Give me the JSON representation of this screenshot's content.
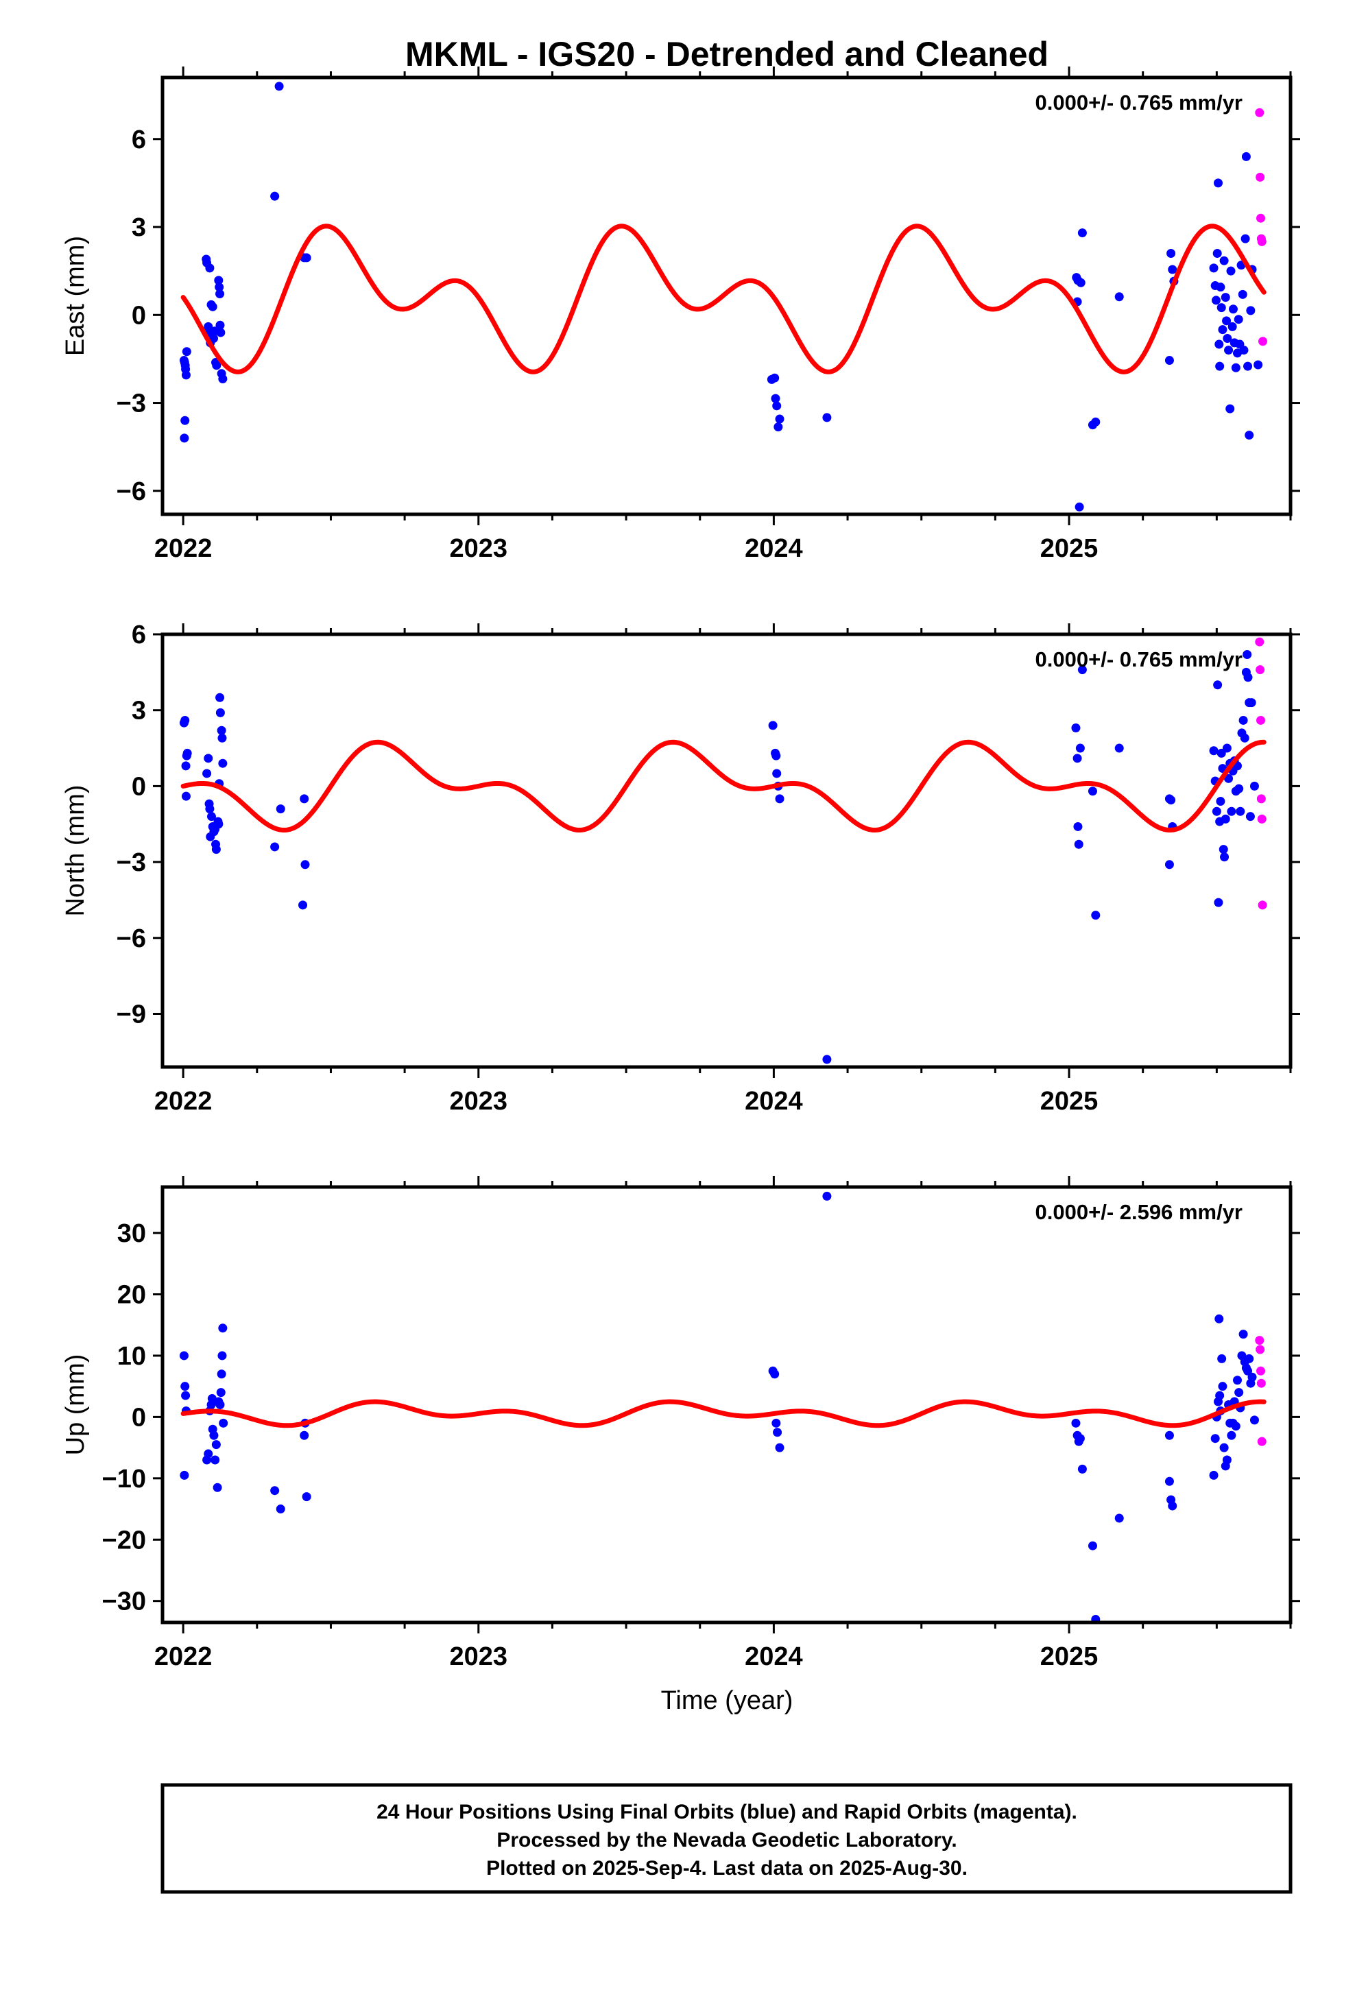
{
  "chart_data": {
    "type": "scatter",
    "title": "MKML - IGS20 - Detrended and Cleaned",
    "xlabel": "Time (year)",
    "x_ticks": [
      "2022",
      "2023",
      "2024",
      "2025"
    ],
    "xlim": [
      2021.93,
      2025.75
    ],
    "colors": {
      "final": "#0000ff",
      "rapid": "#ff00ff",
      "model": "#ff0000"
    },
    "panels": [
      {
        "name": "east",
        "ylabel": "East (mm)",
        "rate": "0.000+/- 0.765 mm/yr",
        "ylim": [
          -6.8,
          8.1
        ],
        "y_ticks": [
          -6,
          -3,
          0,
          3,
          6
        ],
        "model": {
          "offset": 0.6,
          "annual": [
            -1.2,
            -0.8
          ],
          "semiannual": [
            1.2,
            -0.7
          ]
        },
        "final": [
          [
            2022.003,
            -1.55
          ],
          [
            2022.005,
            -1.62
          ],
          [
            2022.007,
            -1.72
          ],
          [
            2022.008,
            -1.85
          ],
          [
            2022.006,
            -3.6
          ],
          [
            2022.004,
            -4.2
          ],
          [
            2022.01,
            -2.05
          ],
          [
            2022.012,
            -1.25
          ],
          [
            2022.078,
            1.9
          ],
          [
            2022.08,
            1.78
          ],
          [
            2022.09,
            1.6
          ],
          [
            2022.085,
            -0.4
          ],
          [
            2022.088,
            -0.6
          ],
          [
            2022.092,
            -0.95
          ],
          [
            2022.095,
            0.35
          ],
          [
            2022.1,
            0.28
          ],
          [
            2022.103,
            -0.8
          ],
          [
            2022.107,
            -0.55
          ],
          [
            2022.11,
            -1.62
          ],
          [
            2022.113,
            -1.72
          ],
          [
            2022.12,
            1.18
          ],
          [
            2022.122,
            0.95
          ],
          [
            2022.124,
            0.72
          ],
          [
            2022.125,
            -0.35
          ],
          [
            2022.127,
            -0.6
          ],
          [
            2022.13,
            -2.0
          ],
          [
            2022.134,
            -2.18
          ],
          [
            2022.31,
            4.05
          ],
          [
            2022.325,
            7.8
          ],
          [
            2022.41,
            1.95
          ],
          [
            2022.418,
            1.95
          ],
          [
            2023.993,
            -2.2
          ],
          [
            2024.003,
            -2.15
          ],
          [
            2024.006,
            -2.85
          ],
          [
            2024.01,
            -3.1
          ],
          [
            2024.015,
            -3.82
          ],
          [
            2024.02,
            -3.55
          ],
          [
            2024.18,
            -3.5
          ],
          [
            2025.025,
            1.28
          ],
          [
            2025.03,
            1.18
          ],
          [
            2025.04,
            1.1
          ],
          [
            2025.028,
            0.45
          ],
          [
            2025.035,
            -6.55
          ],
          [
            2025.045,
            2.8
          ],
          [
            2025.08,
            -3.75
          ],
          [
            2025.09,
            -3.65
          ],
          [
            2025.17,
            0.62
          ],
          [
            2025.34,
            -1.55
          ],
          [
            2025.345,
            2.1
          ],
          [
            2025.35,
            1.55
          ],
          [
            2025.355,
            1.15
          ],
          [
            2025.49,
            1.6
          ],
          [
            2025.495,
            1.0
          ],
          [
            2025.498,
            0.5
          ],
          [
            2025.502,
            2.1
          ],
          [
            2025.505,
            4.5
          ],
          [
            2025.508,
            -1.0
          ],
          [
            2025.51,
            -1.75
          ],
          [
            2025.513,
            0.95
          ],
          [
            2025.516,
            0.25
          ],
          [
            2025.52,
            -0.5
          ],
          [
            2025.525,
            1.85
          ],
          [
            2025.53,
            0.6
          ],
          [
            2025.533,
            -0.2
          ],
          [
            2025.536,
            -0.8
          ],
          [
            2025.54,
            -1.2
          ],
          [
            2025.545,
            -3.2
          ],
          [
            2025.548,
            1.5
          ],
          [
            2025.553,
            -0.4
          ],
          [
            2025.556,
            0.2
          ],
          [
            2025.56,
            -0.95
          ],
          [
            2025.565,
            -1.8
          ],
          [
            2025.57,
            -1.3
          ],
          [
            2025.574,
            -0.15
          ],
          [
            2025.578,
            -1.0
          ],
          [
            2025.583,
            1.7
          ],
          [
            2025.588,
            0.7
          ],
          [
            2025.592,
            -1.2
          ],
          [
            2025.597,
            2.6
          ],
          [
            2025.6,
            5.4
          ],
          [
            2025.605,
            -1.75
          ],
          [
            2025.61,
            -4.1
          ],
          [
            2025.615,
            0.15
          ],
          [
            2025.62,
            1.55
          ],
          [
            2025.64,
            -1.7
          ]
        ],
        "rapid": [
          [
            2025.645,
            6.9
          ],
          [
            2025.647,
            4.7
          ],
          [
            2025.649,
            3.3
          ],
          [
            2025.651,
            2.6
          ],
          [
            2025.653,
            2.5
          ],
          [
            2025.656,
            -0.9
          ]
        ]
      },
      {
        "name": "north",
        "ylabel": "North (mm)",
        "rate": "0.000+/- 0.765 mm/yr",
        "ylim": [
          -11.1,
          6.0
        ],
        "y_ticks": [
          -9,
          -6,
          -3,
          0,
          3,
          6
        ],
        "model": {
          "offset": 0.0,
          "annual": [
            0.0,
            -1.2
          ],
          "semiannual": [
            0.0,
            0.8
          ]
        },
        "final": [
          [
            2022.003,
            2.5
          ],
          [
            2022.006,
            2.6
          ],
          [
            2022.009,
            0.8
          ],
          [
            2022.012,
            1.2
          ],
          [
            2022.014,
            1.3
          ],
          [
            2022.01,
            -0.4
          ],
          [
            2022.08,
            0.5
          ],
          [
            2022.085,
            1.1
          ],
          [
            2022.088,
            -0.7
          ],
          [
            2022.09,
            -0.9
          ],
          [
            2022.092,
            -2.0
          ],
          [
            2022.096,
            -1.2
          ],
          [
            2022.1,
            -1.6
          ],
          [
            2022.104,
            -1.8
          ],
          [
            2022.108,
            -1.7
          ],
          [
            2022.11,
            -2.3
          ],
          [
            2022.112,
            -2.5
          ],
          [
            2022.118,
            -1.4
          ],
          [
            2022.12,
            -1.5
          ],
          [
            2022.122,
            0.1
          ],
          [
            2022.124,
            3.5
          ],
          [
            2022.126,
            2.9
          ],
          [
            2022.13,
            2.2
          ],
          [
            2022.132,
            1.9
          ],
          [
            2022.134,
            0.9
          ],
          [
            2022.31,
            -2.4
          ],
          [
            2022.33,
            -0.9
          ],
          [
            2022.41,
            -0.5
          ],
          [
            2022.413,
            -3.1
          ],
          [
            2022.405,
            -4.7
          ],
          [
            2023.997,
            2.4
          ],
          [
            2024.005,
            1.3
          ],
          [
            2024.008,
            1.2
          ],
          [
            2024.01,
            0.5
          ],
          [
            2024.015,
            0.0
          ],
          [
            2024.02,
            -0.5
          ],
          [
            2024.18,
            -10.8
          ],
          [
            2025.023,
            2.3
          ],
          [
            2025.028,
            1.1
          ],
          [
            2025.03,
            -1.6
          ],
          [
            2025.033,
            -2.3
          ],
          [
            2025.038,
            1.5
          ],
          [
            2025.045,
            4.6
          ],
          [
            2025.08,
            -0.2
          ],
          [
            2025.09,
            -5.1
          ],
          [
            2025.17,
            1.5
          ],
          [
            2025.34,
            -0.5
          ],
          [
            2025.345,
            -0.55
          ],
          [
            2025.35,
            -1.6
          ],
          [
            2025.34,
            -3.1
          ],
          [
            2025.49,
            1.4
          ],
          [
            2025.495,
            0.2
          ],
          [
            2025.5,
            -1.0
          ],
          [
            2025.503,
            4.0
          ],
          [
            2025.506,
            -4.6
          ],
          [
            2025.51,
            -1.4
          ],
          [
            2025.513,
            -0.6
          ],
          [
            2025.516,
            1.3
          ],
          [
            2025.52,
            0.7
          ],
          [
            2025.523,
            -2.5
          ],
          [
            2025.526,
            -2.8
          ],
          [
            2025.53,
            -1.3
          ],
          [
            2025.535,
            1.5
          ],
          [
            2025.54,
            0.3
          ],
          [
            2025.545,
            0.9
          ],
          [
            2025.55,
            -1.0
          ],
          [
            2025.555,
            0.6
          ],
          [
            2025.56,
            1.0
          ],
          [
            2025.565,
            -0.2
          ],
          [
            2025.57,
            0.8
          ],
          [
            2025.575,
            -0.1
          ],
          [
            2025.58,
            -1.0
          ],
          [
            2025.585,
            2.1
          ],
          [
            2025.59,
            2.6
          ],
          [
            2025.595,
            1.9
          ],
          [
            2025.6,
            4.5
          ],
          [
            2025.603,
            5.2
          ],
          [
            2025.606,
            4.3
          ],
          [
            2025.61,
            3.3
          ],
          [
            2025.614,
            -1.2
          ],
          [
            2025.618,
            3.3
          ],
          [
            2025.628,
            0.0
          ]
        ],
        "rapid": [
          [
            2025.645,
            5.7
          ],
          [
            2025.647,
            4.6
          ],
          [
            2025.649,
            2.6
          ],
          [
            2025.651,
            -0.5
          ],
          [
            2025.653,
            -1.3
          ],
          [
            2025.655,
            -4.7
          ]
        ]
      },
      {
        "name": "up",
        "ylabel": "Up (mm)",
        "rate": "0.000+/- 2.596 mm/yr",
        "ylim": [
          -33.5,
          37.5
        ],
        "y_ticks": [
          -30,
          -20,
          -10,
          0,
          10,
          20,
          30
        ],
        "model": {
          "offset": 0.55,
          "annual": [
            0.0,
            -1.1
          ],
          "semiannual": [
            0.0,
            1.1
          ]
        },
        "final": [
          [
            2022.003,
            10.0
          ],
          [
            2022.006,
            5.0
          ],
          [
            2022.008,
            3.5
          ],
          [
            2022.01,
            1.0
          ],
          [
            2022.004,
            -9.5
          ],
          [
            2022.08,
            -7.0
          ],
          [
            2022.085,
            -6.0
          ],
          [
            2022.09,
            1.0
          ],
          [
            2022.095,
            2.0
          ],
          [
            2022.098,
            3.0
          ],
          [
            2022.1,
            -2.0
          ],
          [
            2022.104,
            -3.0
          ],
          [
            2022.108,
            -7.0
          ],
          [
            2022.112,
            -4.5
          ],
          [
            2022.116,
            -11.5
          ],
          [
            2022.12,
            2.5
          ],
          [
            2022.125,
            2.0
          ],
          [
            2022.128,
            4.0
          ],
          [
            2022.13,
            7.0
          ],
          [
            2022.132,
            10.0
          ],
          [
            2022.134,
            14.5
          ],
          [
            2022.136,
            -1.0
          ],
          [
            2022.31,
            -12.0
          ],
          [
            2022.33,
            -15.0
          ],
          [
            2022.41,
            -3.0
          ],
          [
            2022.413,
            -1.0
          ],
          [
            2022.418,
            -13.0
          ],
          [
            2023.997,
            7.5
          ],
          [
            2024.003,
            7.0
          ],
          [
            2024.008,
            -1.0
          ],
          [
            2024.012,
            -2.5
          ],
          [
            2024.02,
            -5.0
          ],
          [
            2024.18,
            36.0
          ],
          [
            2025.023,
            -1.0
          ],
          [
            2025.028,
            -3.0
          ],
          [
            2025.033,
            -4.0
          ],
          [
            2025.038,
            -3.5
          ],
          [
            2025.045,
            -8.5
          ],
          [
            2025.08,
            -21.0
          ],
          [
            2025.09,
            -33.0
          ],
          [
            2025.17,
            -16.5
          ],
          [
            2025.34,
            -10.5
          ],
          [
            2025.345,
            -13.5
          ],
          [
            2025.35,
            -14.5
          ],
          [
            2025.34,
            -3.0
          ],
          [
            2025.49,
            -9.5
          ],
          [
            2025.495,
            -3.5
          ],
          [
            2025.5,
            0.0
          ],
          [
            2025.505,
            2.5
          ],
          [
            2025.508,
            16.0
          ],
          [
            2025.51,
            3.5
          ],
          [
            2025.513,
            1.0
          ],
          [
            2025.517,
            9.5
          ],
          [
            2025.52,
            5.0
          ],
          [
            2025.525,
            -5.0
          ],
          [
            2025.53,
            -8.0
          ],
          [
            2025.535,
            -7.0
          ],
          [
            2025.54,
            2.0
          ],
          [
            2025.545,
            -1.0
          ],
          [
            2025.55,
            -3.0
          ],
          [
            2025.555,
            -1.0
          ],
          [
            2025.56,
            2.5
          ],
          [
            2025.565,
            -1.5
          ],
          [
            2025.57,
            6.0
          ],
          [
            2025.575,
            4.0
          ],
          [
            2025.58,
            1.5
          ],
          [
            2025.585,
            10.0
          ],
          [
            2025.59,
            13.5
          ],
          [
            2025.595,
            9.0
          ],
          [
            2025.6,
            8.0
          ],
          [
            2025.605,
            7.5
          ],
          [
            2025.61,
            9.5
          ],
          [
            2025.615,
            5.5
          ],
          [
            2025.62,
            6.5
          ],
          [
            2025.628,
            -0.5
          ]
        ],
        "rapid": [
          [
            2025.645,
            12.5
          ],
          [
            2025.647,
            11.0
          ],
          [
            2025.649,
            7.5
          ],
          [
            2025.651,
            5.5
          ],
          [
            2025.653,
            -4.0
          ]
        ]
      }
    ],
    "footer": [
      "24 Hour Positions Using Final Orbits (blue) and Rapid Orbits (magenta).",
      "Processed by the Nevada Geodetic Laboratory.",
      "Plotted on 2025-Sep-4. Last data on 2025-Aug-30."
    ]
  }
}
